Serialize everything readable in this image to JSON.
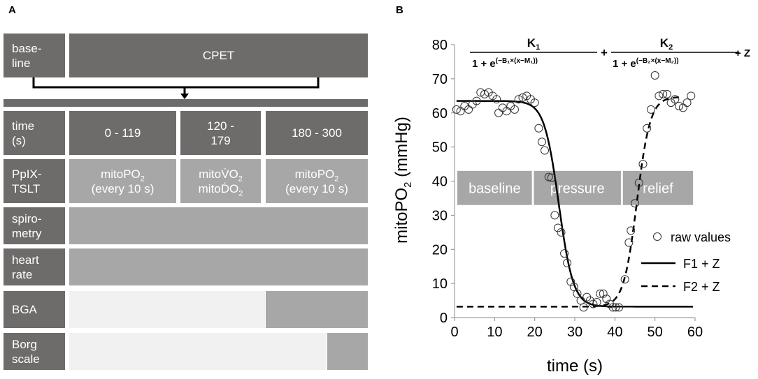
{
  "panel_a": {
    "letter": "A",
    "baseline_label": [
      "base-",
      "line"
    ],
    "cpet_label": "CPET",
    "time_label": [
      "time",
      "(s)"
    ],
    "time_ranges": [
      "0 - 119",
      "120 -",
      "179",
      "180 - 300"
    ],
    "ppix_label": [
      "PpIX-",
      "TSLT"
    ],
    "ppix_cells": {
      "first": {
        "main": "mitoPO",
        "sub": "2",
        "note": "(every 10 s)"
      },
      "middle": {
        "line1_main": "mitoV̇O",
        "line1_sub": "2",
        "line2_main": "mitoḊO",
        "line2_sub": "2"
      },
      "last": {
        "main": "mitoPO",
        "sub": "2",
        "note": "(every 10 s)"
      }
    },
    "spirometry_label": [
      "spiro-",
      "metry"
    ],
    "heart_rate_label": [
      "heart",
      "rate"
    ],
    "bga_label": "BGA",
    "borg_label": [
      "Borg",
      "scale"
    ]
  },
  "chart_data": {
    "letter": "B",
    "type": "scatter",
    "xlabel": "time (s)",
    "ylabel_main": "mitoPO",
    "ylabel_sub": "2",
    "ylabel_unit": " (mmHg)",
    "xlim": [
      0,
      60
    ],
    "ylim": [
      0,
      80
    ],
    "xticks": [
      0,
      10,
      20,
      30,
      40,
      50,
      60
    ],
    "yticks": [
      0,
      10,
      20,
      30,
      40,
      50,
      60,
      70,
      80
    ],
    "formula": {
      "term1_num": "K",
      "term1_num_sub": "1",
      "term1_den": "1 + e",
      "term1_exp": "(−B₁×(x−M₁))",
      "plus": "+",
      "term2_num": "K",
      "term2_num_sub": "2",
      "term2_den": "1 + e",
      "term2_exp": "(−B₂×(x−M₂))",
      "tail": "+ Z"
    },
    "phase_boxes": [
      {
        "label": "baseline",
        "x_start": 0.7,
        "x_end": 19.3
      },
      {
        "label": "pressure",
        "x_start": 19.8,
        "x_end": 41.5
      },
      {
        "label": "relief",
        "x_start": 42.0,
        "x_end": 59.5
      }
    ],
    "phase_boxes_y": [
      33,
      43
    ],
    "series": [
      {
        "name": "raw values",
        "style": "open-circle",
        "points": [
          [
            0.5,
            61
          ],
          [
            1.5,
            60.5
          ],
          [
            2.5,
            62
          ],
          [
            3.5,
            61
          ],
          [
            4.5,
            62.5
          ],
          [
            5.5,
            63.5
          ],
          [
            6.5,
            66
          ],
          [
            7.5,
            65.5
          ],
          [
            8.5,
            66
          ],
          [
            9.5,
            65
          ],
          [
            10.5,
            64
          ],
          [
            11,
            60
          ],
          [
            12,
            61.5
          ],
          [
            13,
            60.5
          ],
          [
            14,
            62
          ],
          [
            15,
            61
          ],
          [
            16,
            64
          ],
          [
            17,
            64.5
          ],
          [
            18,
            65
          ],
          [
            19,
            64
          ],
          [
            20,
            63
          ],
          [
            21,
            55.5
          ],
          [
            21.8,
            51.5
          ],
          [
            22.5,
            49
          ],
          [
            23.5,
            41.2
          ],
          [
            24.2,
            41
          ],
          [
            25,
            30
          ],
          [
            25.8,
            26.3
          ],
          [
            26.6,
            25
          ],
          [
            27.4,
            18.8
          ],
          [
            28.1,
            16
          ],
          [
            29,
            10.5
          ],
          [
            29.8,
            9
          ],
          [
            30.6,
            7
          ],
          [
            31.5,
            5
          ],
          [
            32.2,
            3
          ],
          [
            33,
            6
          ],
          [
            33.8,
            5
          ],
          [
            34.6,
            4
          ],
          [
            35.5,
            4.5
          ],
          [
            36.3,
            7
          ],
          [
            37.1,
            7
          ],
          [
            37.9,
            5.5
          ],
          [
            38.7,
            4
          ],
          [
            39.5,
            3
          ],
          [
            40.2,
            3
          ],
          [
            41,
            3
          ],
          [
            42.5,
            11.2
          ],
          [
            43.5,
            22
          ],
          [
            44,
            25.5
          ],
          [
            45,
            33.5
          ],
          [
            46,
            39.5
          ],
          [
            47,
            45
          ],
          [
            48,
            55.5
          ],
          [
            49,
            61
          ],
          [
            50,
            71
          ],
          [
            51,
            65
          ],
          [
            52,
            65.5
          ],
          [
            53,
            65.5
          ],
          [
            54,
            63
          ],
          [
            55,
            64
          ],
          [
            56,
            62
          ],
          [
            57,
            61.5
          ],
          [
            58,
            63
          ],
          [
            59,
            65
          ]
        ]
      },
      {
        "name": "F1 + Z",
        "style": "solid",
        "K": 60.3,
        "B": 0.55,
        "M": 26,
        "Z": 3.2
      },
      {
        "name": "F2 + Z",
        "style": "dashed",
        "K": 61.5,
        "B": 0.6,
        "M": 45.5,
        "Z": 3.2
      }
    ],
    "legend": [
      "raw values",
      "F1 + Z",
      "F2 + Z"
    ]
  }
}
